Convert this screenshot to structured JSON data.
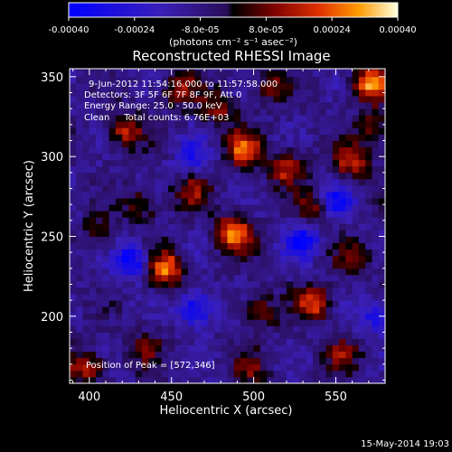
{
  "chart_data": {
    "type": "heatmap",
    "title": "Reconstructed RHESSI Image",
    "xlabel": "Heliocentric X (arcsec)",
    "ylabel": "Heliocentric Y (arcsec)",
    "xlim": [
      388,
      580
    ],
    "ylim": [
      158,
      355
    ],
    "x_ticks": [
      "400",
      "450",
      "500",
      "550"
    ],
    "x_tick_values": [
      400,
      450,
      500,
      550
    ],
    "y_ticks": [
      "200",
      "250",
      "300",
      "350"
    ],
    "y_tick_values": [
      200,
      250,
      300,
      350
    ],
    "colorbar": {
      "unit_label": "(photons cm⁻² s⁻¹ asec⁻²)",
      "range": [
        -0.0004,
        0.0004
      ],
      "tick_labels": [
        "-0.00040",
        "-0.00024",
        "-8.0e-05",
        "8.0e-05",
        "0.00024",
        "0.00040"
      ],
      "tick_values": [
        -0.0004,
        -0.00024,
        -8e-05,
        8e-05,
        0.00024,
        0.0004
      ]
    },
    "annotations": [
      "9-Jun-2012 11:54:16.000 to 11:57:58.000",
      "Detectors: 3F 5F 6F 7F 8F 9F, Att 0",
      "Energy Range: 25.0 - 50.0 keV",
      "Clean     Total counts: 6.76E+03"
    ],
    "peak_label": "Position of Peak = [572,346]",
    "sources": [
      {
        "x": 572,
        "y": 346,
        "value": 0.0004
      },
      {
        "x": 494,
        "y": 305,
        "value": 0.00034
      },
      {
        "x": 488,
        "y": 252,
        "value": 0.00038
      },
      {
        "x": 447,
        "y": 230,
        "value": 0.00036
      },
      {
        "x": 520,
        "y": 293,
        "value": 0.00026
      },
      {
        "x": 560,
        "y": 297,
        "value": 0.00028
      },
      {
        "x": 422,
        "y": 317,
        "value": 0.00025
      },
      {
        "x": 455,
        "y": 342,
        "value": 0.00022
      },
      {
        "x": 478,
        "y": 330,
        "value": 0.0002
      },
      {
        "x": 537,
        "y": 268,
        "value": 0.00022
      },
      {
        "x": 537,
        "y": 208,
        "value": 0.0003
      },
      {
        "x": 503,
        "y": 203,
        "value": 0.00018
      },
      {
        "x": 462,
        "y": 278,
        "value": 0.0002
      },
      {
        "x": 398,
        "y": 168,
        "value": 0.00025
      },
      {
        "x": 498,
        "y": 168,
        "value": 0.00016
      },
      {
        "x": 434,
        "y": 180,
        "value": 0.00014
      },
      {
        "x": 555,
        "y": 176,
        "value": 0.00018
      },
      {
        "x": 432,
        "y": 270,
        "value": 0.00016
      },
      {
        "x": 560,
        "y": 236,
        "value": 0.00017
      },
      {
        "x": 407,
        "y": 252,
        "value": 0.00014
      },
      {
        "x": 510,
        "y": 345,
        "value": 0.00015
      },
      {
        "x": 573,
        "y": 318,
        "value": 0.0002
      }
    ],
    "dark_regions": [
      {
        "x": 425,
        "y": 235,
        "value": -0.00032
      },
      {
        "x": 465,
        "y": 205,
        "value": -0.0003
      },
      {
        "x": 530,
        "y": 247,
        "value": -0.0003
      },
      {
        "x": 550,
        "y": 272,
        "value": -0.00026
      },
      {
        "x": 462,
        "y": 300,
        "value": -0.0002
      },
      {
        "x": 575,
        "y": 200,
        "value": -0.00022
      }
    ]
  },
  "footer": {
    "date": "15-May-2014 19:03"
  }
}
